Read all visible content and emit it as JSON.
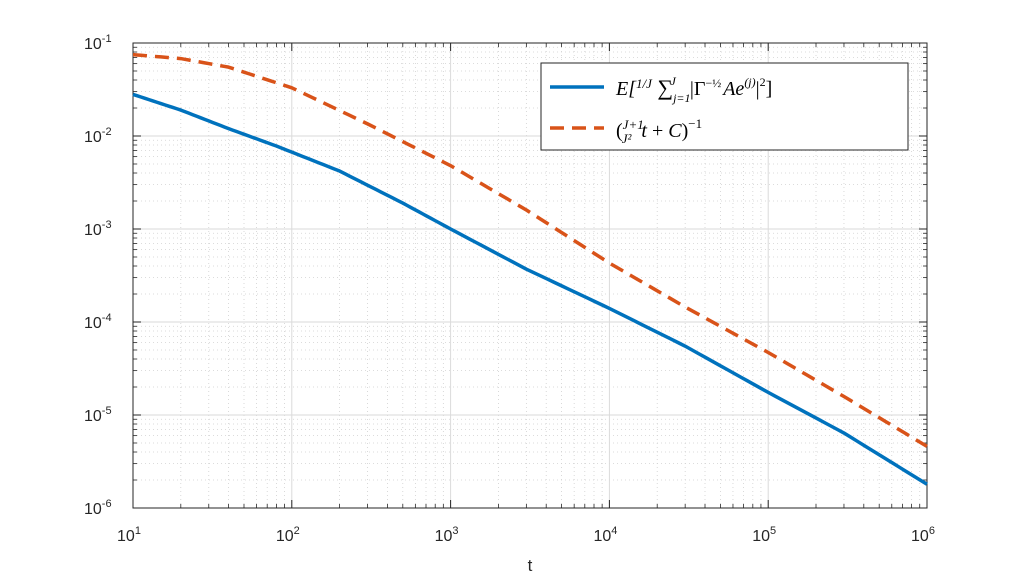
{
  "chart_data": {
    "type": "line",
    "x_scale": "log",
    "y_scale": "log",
    "xlabel": "t",
    "ylabel": "",
    "xlim": [
      10,
      1000000
    ],
    "ylim": [
      1e-06,
      0.1
    ],
    "x_ticks": [
      {
        "base": "10",
        "exp": "1",
        "value": 10
      },
      {
        "base": "10",
        "exp": "2",
        "value": 100
      },
      {
        "base": "10",
        "exp": "3",
        "value": 1000
      },
      {
        "base": "10",
        "exp": "4",
        "value": 10000
      },
      {
        "base": "10",
        "exp": "5",
        "value": 100000
      },
      {
        "base": "10",
        "exp": "6",
        "value": 1000000
      }
    ],
    "y_ticks": [
      {
        "base": "10",
        "exp": "-6",
        "value": 1e-06
      },
      {
        "base": "10",
        "exp": "-5",
        "value": 1e-05
      },
      {
        "base": "10",
        "exp": "-4",
        "value": 0.0001
      },
      {
        "base": "10",
        "exp": "-3",
        "value": 0.001
      },
      {
        "base": "10",
        "exp": "-2",
        "value": 0.01
      },
      {
        "base": "10",
        "exp": "-1",
        "value": 0.1
      }
    ],
    "grid": true,
    "minor_grid": true,
    "legend_position": "top-right",
    "series": [
      {
        "name": "E[1/J ∑_{j=1}^{J} |Γ^{-1/2} A e^{(j)}|^2]",
        "color": "#0072BD",
        "style": "solid",
        "points": [
          {
            "x": 10,
            "y": 0.028
          },
          {
            "x": 20,
            "y": 0.019
          },
          {
            "x": 40,
            "y": 0.012
          },
          {
            "x": 80,
            "y": 0.0078
          },
          {
            "x": 200,
            "y": 0.0042
          },
          {
            "x": 500,
            "y": 0.0019
          },
          {
            "x": 1000,
            "y": 0.001
          },
          {
            "x": 3000,
            "y": 0.00037
          },
          {
            "x": 10000,
            "y": 0.00014
          },
          {
            "x": 30000,
            "y": 5.5e-05
          },
          {
            "x": 100000,
            "y": 1.75e-05
          },
          {
            "x": 300000,
            "y": 6.4e-06
          },
          {
            "x": 1000000,
            "y": 1.8e-06
          }
        ]
      },
      {
        "name": "((J+1)/J^2 t + C)^{-1}",
        "color": "#D95319",
        "style": "dashed",
        "points": [
          {
            "x": 10,
            "y": 0.075
          },
          {
            "x": 20,
            "y": 0.068
          },
          {
            "x": 40,
            "y": 0.055
          },
          {
            "x": 100,
            "y": 0.033
          },
          {
            "x": 300,
            "y": 0.0135
          },
          {
            "x": 1000,
            "y": 0.0048
          },
          {
            "x": 3000,
            "y": 0.0016
          },
          {
            "x": 10000,
            "y": 0.00043
          },
          {
            "x": 30000,
            "y": 0.000145
          },
          {
            "x": 100000,
            "y": 4.7e-05
          },
          {
            "x": 300000,
            "y": 1.58e-05
          },
          {
            "x": 1000000,
            "y": 4.6e-06
          }
        ]
      }
    ]
  }
}
